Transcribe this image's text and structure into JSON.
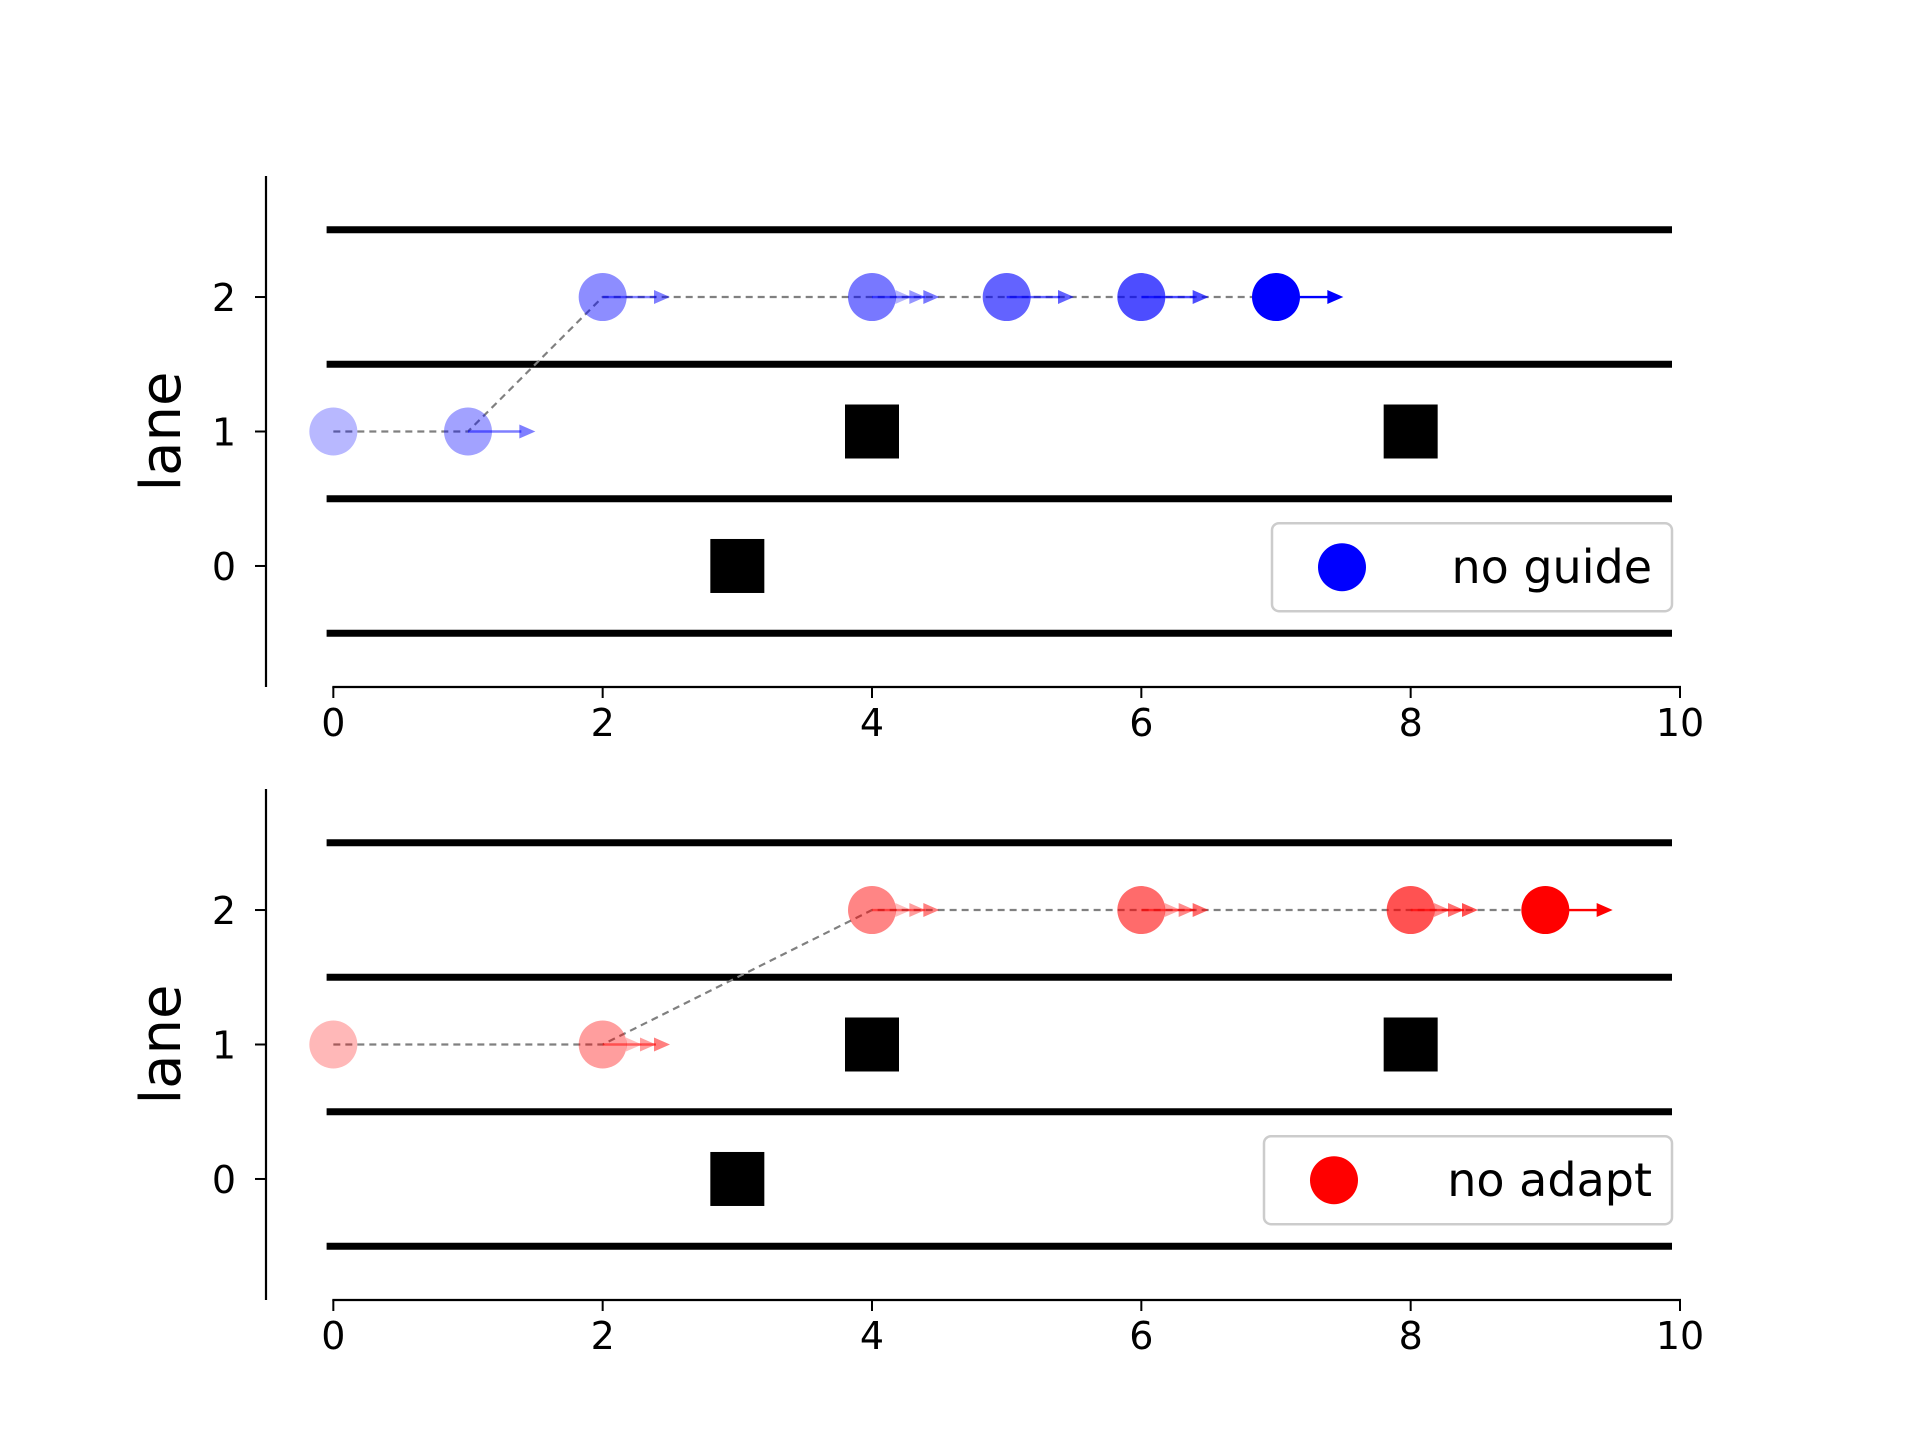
{
  "chart_data": [
    {
      "type": "scatter",
      "xlim": [
        -0.5,
        10
      ],
      "ylim": [
        -0.9,
        2.9
      ],
      "xticks": [
        "0",
        "2",
        "4",
        "6",
        "8",
        "10"
      ],
      "yticks": [
        "0",
        "1",
        "2"
      ],
      "ylabel": "lane",
      "lane_boundaries": [
        -0.5,
        0.5,
        1.5,
        2.5
      ],
      "obstacles": [
        {
          "x": 3,
          "y": 0
        },
        {
          "x": 4,
          "y": 1
        },
        {
          "x": 8,
          "y": 1
        }
      ],
      "color": "#0000ff",
      "legend_label": "no guide",
      "legend_position": "lower-right",
      "trajectory": [
        {
          "x": 0,
          "y": 1,
          "arrows": 0
        },
        {
          "x": 1,
          "y": 1,
          "arrows": 1
        },
        {
          "x": 2,
          "y": 2,
          "arrows": 1
        },
        {
          "x": 4,
          "y": 2,
          "arrows": 3
        },
        {
          "x": 5,
          "y": 2,
          "arrows": 1
        },
        {
          "x": 6,
          "y": 2,
          "arrows": 1
        },
        {
          "x": 7,
          "y": 2,
          "arrows": 1
        }
      ]
    },
    {
      "type": "scatter",
      "xlim": [
        -0.5,
        10
      ],
      "ylim": [
        -0.9,
        2.9
      ],
      "xticks": [
        "0",
        "2",
        "4",
        "6",
        "8",
        "10"
      ],
      "yticks": [
        "0",
        "1",
        "2"
      ],
      "ylabel": "lane",
      "lane_boundaries": [
        -0.5,
        0.5,
        1.5,
        2.5
      ],
      "obstacles": [
        {
          "x": 3,
          "y": 0
        },
        {
          "x": 4,
          "y": 1
        },
        {
          "x": 8,
          "y": 1
        }
      ],
      "color": "#ff0000",
      "legend_label": "no adapt",
      "legend_position": "lower-right",
      "trajectory": [
        {
          "x": 0,
          "y": 1,
          "arrows": 0
        },
        {
          "x": 2,
          "y": 1,
          "arrows": 3
        },
        {
          "x": 4,
          "y": 2,
          "arrows": 3
        },
        {
          "x": 6,
          "y": 2,
          "arrows": 3
        },
        {
          "x": 8,
          "y": 2,
          "arrows": 3
        },
        {
          "x": 9,
          "y": 2,
          "arrows": 1
        }
      ]
    }
  ]
}
